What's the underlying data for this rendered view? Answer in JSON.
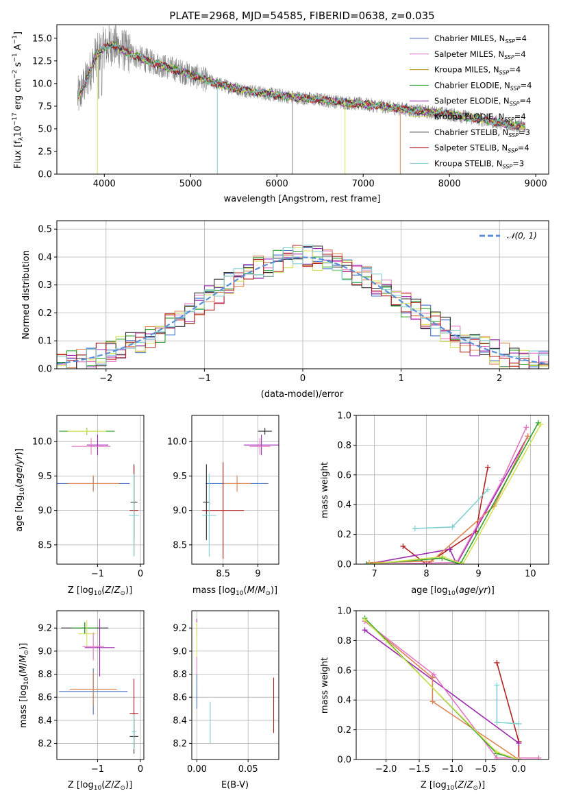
{
  "chart_data": [
    {
      "id": "spectrum",
      "type": "line",
      "title": "PLATE=2968, MJD=54585, FIBERID=0638, z=0.035",
      "xlabel": "wavelength [Angstrom, rest frame]",
      "ylabel_tex": "Flux [f_λ 10^{-17} erg cm^{-2} s^{-1} A^{-1}]",
      "xlim": [
        3450,
        9150
      ],
      "ylim": [
        0,
        16.5
      ],
      "xticks": [
        4000,
        5000,
        6000,
        7000,
        8000,
        9000
      ],
      "yticks": [
        0.0,
        2.5,
        5.0,
        7.5,
        10.0,
        12.5,
        15.0
      ],
      "grid": false,
      "legend_placement": "top-right",
      "data_color": "#808080",
      "data_anchor_x": [
        3700,
        3800,
        3900,
        4000,
        4100,
        4300,
        4500,
        4800,
        5000,
        5300,
        5600,
        6000,
        6400,
        6800,
        7200,
        7600,
        8000,
        8400,
        8800
      ],
      "data_anchor_y": [
        8.5,
        10.5,
        13.0,
        14.0,
        14.3,
        13.3,
        12.5,
        11.6,
        11.0,
        10.0,
        9.3,
        8.7,
        8.3,
        7.9,
        7.5,
        7.0,
        6.6,
        6.0,
        5.3
      ],
      "series": [
        {
          "name": "Chabrier MILES, N_SSP=4",
          "label_main": "Chabrier MILES, N",
          "label_sub": "SSP",
          "label_end": "=4",
          "color": "#4472c4"
        },
        {
          "name": "Salpeter MILES, N_SSP=4",
          "label_main": "Salpeter MILES, N",
          "label_sub": "SSP",
          "label_end": "=4",
          "color": "#e377c2"
        },
        {
          "name": "Kroupa MILES, N_SSP=4",
          "label_main": "Kroupa MILES, N",
          "label_sub": "SSP",
          "label_end": "=4",
          "color": "#b8860b"
        },
        {
          "name": "Chabrier ELODIE, N_SSP=4",
          "label_main": "Chabrier ELODIE, N",
          "label_sub": "SSP",
          "label_end": "=4",
          "color": "#2ca02c"
        },
        {
          "name": "Salpeter ELODIE, N_SSP=4",
          "label_main": "Salpeter ELODIE, N",
          "label_sub": "SSP",
          "label_end": "=4",
          "color": "#9c27b0"
        },
        {
          "name": "Kroupa ELODIE, N_SSP=4",
          "label_main": "Kroupa ELODIE, N",
          "label_sub": "SSP",
          "label_end": "=4",
          "color": "#d4e157"
        },
        {
          "name": "Chabrier STELIB, N_SSP=3",
          "label_main": "Chabrier STELIB, N",
          "label_sub": "SSP",
          "label_end": "=3",
          "color": "#333333"
        },
        {
          "name": "Salpeter STELIB, N_SSP=4",
          "label_main": "Salpeter STELIB, N",
          "label_sub": "SSP",
          "label_end": "=4",
          "color": "#b22222"
        },
        {
          "name": "Kroupa STELIB, N_SSP=3",
          "label_main": "Kroupa STELIB, N",
          "label_sub": "SSP",
          "label_end": "=3",
          "color": "#80d0d0"
        }
      ]
    },
    {
      "id": "residuals",
      "type": "line",
      "xlabel": "(data-model)/error",
      "ylabel": "Normed distribution",
      "xlim": [
        -2.5,
        2.5
      ],
      "ylim": [
        0,
        0.53
      ],
      "xticks": [
        -2,
        -1,
        0,
        1,
        2
      ],
      "xtick_labels": [
        "−2",
        "−1",
        "0",
        "1",
        "2"
      ],
      "yticks": [
        0.0,
        0.1,
        0.2,
        0.3,
        0.4,
        0.5
      ],
      "grid": true,
      "legend_placement": "top-right",
      "legend_label": "𝒩(0, 1)",
      "gauss_color": "#5b8fd9",
      "hist_bin_width": 0.1,
      "hist_colors": [
        "#4472c4",
        "#e377c2",
        "#dd8452",
        "#2ca02c",
        "#9c27b0",
        "#d4e157",
        "#333333",
        "#b22222",
        "#80d0d0"
      ]
    },
    {
      "id": "age-vs-Z",
      "type": "scatter",
      "xlabel_tex": "Z [log10(Z/Z☉)]",
      "ylabel_tex": "age [log10(age/yr)]",
      "xlim": [
        -1.95,
        0.08
      ],
      "ylim": [
        8.22,
        10.38
      ],
      "xticks": [
        -1,
        0
      ],
      "xtick_labels": [
        "−1",
        "0"
      ],
      "yticks": [
        8.5,
        9.0,
        9.5,
        10.0
      ],
      "grid": true,
      "points": [
        {
          "x": -1.25,
          "xerr": 0.65,
          "y": 10.15,
          "yerr": 0.05,
          "color": "#2ca02c"
        },
        {
          "x": -1.25,
          "xerr": 0.45,
          "y": 10.15,
          "yerr": 0.04,
          "color": "#d4e157"
        },
        {
          "x": -1.0,
          "xerr": 0.25,
          "y": 9.95,
          "yerr": 0.15,
          "color": "#9c27b0"
        },
        {
          "x": -1.15,
          "xerr": 0.45,
          "y": 9.93,
          "yerr": 0.12,
          "color": "#e377c2"
        },
        {
          "x": -1.1,
          "xerr": 0.85,
          "y": 9.39,
          "yerr": 0.1,
          "color": "#4472c4"
        },
        {
          "x": -1.1,
          "xerr": 0.6,
          "y": 9.39,
          "yerr": 0.12,
          "color": "#dd8452"
        },
        {
          "x": -0.15,
          "xerr": 0.08,
          "y": 9.12,
          "yerr": 0.55,
          "color": "#333333"
        },
        {
          "x": -0.15,
          "xerr": 0.1,
          "y": 9.0,
          "yerr": 0.65,
          "color": "#b22222"
        },
        {
          "x": -0.15,
          "xerr": 0.12,
          "y": 8.93,
          "yerr": 0.6,
          "color": "#80d0d0"
        }
      ]
    },
    {
      "id": "age-vs-mass",
      "type": "scatter",
      "xlabel_tex": "mass [log10(M/M☉)]",
      "xlim": [
        8.05,
        9.3
      ],
      "ylim": [
        8.22,
        10.38
      ],
      "xticks": [
        8.5,
        9.0
      ],
      "yticks": [
        8.5,
        9.0,
        9.5,
        10.0
      ],
      "grid": true,
      "points": [
        {
          "x": 9.1,
          "xerr": 0.1,
          "y": 10.15,
          "yerr": 0.05,
          "color": "#333333"
        },
        {
          "x": 9.05,
          "xerr": 0.25,
          "y": 9.95,
          "yerr": 0.15,
          "color": "#9c27b0"
        },
        {
          "x": 9.03,
          "xerr": 0.15,
          "y": 9.93,
          "yerr": 0.12,
          "color": "#e377c2"
        },
        {
          "x": 8.7,
          "xerr": 0.45,
          "y": 9.39,
          "yerr": 0.1,
          "color": "#4472c4"
        },
        {
          "x": 8.7,
          "xerr": 0.2,
          "y": 9.39,
          "yerr": 0.12,
          "color": "#dd8452"
        },
        {
          "x": 8.5,
          "xerr": 0.3,
          "y": 9.0,
          "yerr": 0.7,
          "color": "#b22222"
        },
        {
          "x": 8.26,
          "xerr": 0.05,
          "y": 9.12,
          "yerr": 0.55,
          "color": "#333333"
        },
        {
          "x": 8.3,
          "xerr": 0.1,
          "y": 8.93,
          "yerr": 0.6,
          "color": "#80d0d0"
        }
      ]
    },
    {
      "id": "weight-vs-age",
      "type": "line",
      "xlabel_tex": "age [log10(age/yr)]",
      "ylabel": "mass weight",
      "xlim": [
        6.65,
        10.35
      ],
      "ylim": [
        0,
        1
      ],
      "xticks": [
        7,
        8,
        9,
        10
      ],
      "yticks": [
        0.0,
        0.2,
        0.4,
        0.6,
        0.8,
        1.0
      ],
      "grid": true,
      "series": [
        {
          "color": "#b22222",
          "x": [
            7.55,
            8.0,
            8.95,
            9.18
          ],
          "y": [
            0.12,
            0.0,
            0.22,
            0.65
          ]
        },
        {
          "color": "#80d0d0",
          "x": [
            7.78,
            8.5,
            9.18
          ],
          "y": [
            0.24,
            0.25,
            0.5
          ]
        },
        {
          "color": "#9c27b0",
          "x": [
            6.85,
            8.45,
            8.58,
            9.95
          ],
          "y": [
            0.0,
            0.1,
            0.0,
            0.86
          ]
        },
        {
          "color": "#dd8452",
          "x": [
            6.9,
            8.1,
            9.3,
            9.95
          ],
          "y": [
            0.01,
            0.02,
            0.39,
            0.86
          ]
        },
        {
          "color": "#e377c2",
          "x": [
            6.85,
            8.58,
            9.45,
            9.92
          ],
          "y": [
            0.0,
            0.01,
            0.56,
            0.92
          ]
        },
        {
          "color": "#2ca02c",
          "x": [
            6.85,
            8.3,
            8.65,
            10.15
          ],
          "y": [
            0.0,
            0.04,
            0.0,
            0.95
          ]
        },
        {
          "color": "#d4e157",
          "x": [
            6.9,
            8.32,
            8.7,
            10.2
          ],
          "y": [
            0.0,
            0.05,
            0.0,
            0.94
          ]
        }
      ]
    },
    {
      "id": "mass-vs-Z",
      "type": "scatter",
      "xlabel_tex": "Z [log10(Z/Z☉)]",
      "ylabel_tex": "mass [log10(M/M☉)]",
      "xlim": [
        -1.95,
        0.08
      ],
      "ylim": [
        8.06,
        9.35
      ],
      "xticks": [
        -1,
        0
      ],
      "xtick_labels": [
        "−1",
        "0"
      ],
      "yticks": [
        8.2,
        8.4,
        8.6,
        8.8,
        9.0,
        9.2
      ],
      "grid": true,
      "points": [
        {
          "x": -1.3,
          "xerr": 0.55,
          "y": 9.2,
          "yerr": 0.05,
          "color": "#333333"
        },
        {
          "x": -1.3,
          "xerr": 0.3,
          "y": 9.2,
          "yerr": 0.05,
          "color": "#2ca02c"
        },
        {
          "x": -1.25,
          "xerr": 0.2,
          "y": 9.15,
          "yerr": 0.12,
          "color": "#d4e157"
        },
        {
          "x": -0.95,
          "xerr": 0.35,
          "y": 9.03,
          "yerr": 0.25,
          "color": "#9c27b0"
        },
        {
          "x": -1.1,
          "xerr": 0.25,
          "y": 9.04,
          "yerr": 0.12,
          "color": "#e377c2"
        },
        {
          "x": -1.1,
          "xerr": 0.8,
          "y": 8.65,
          "yerr": 0.2,
          "color": "#4472c4"
        },
        {
          "x": -1.1,
          "xerr": 0.55,
          "y": 8.67,
          "yerr": 0.15,
          "color": "#dd8452"
        },
        {
          "x": -0.15,
          "xerr": 0.1,
          "y": 8.46,
          "yerr": 0.3,
          "color": "#b22222"
        },
        {
          "x": -0.15,
          "xerr": 0.1,
          "y": 8.26,
          "yerr": 0.15,
          "color": "#333333"
        },
        {
          "x": -0.15,
          "xerr": 0.05,
          "y": 8.3,
          "yerr": 0.15,
          "color": "#80d0d0"
        }
      ]
    },
    {
      "id": "mass-vs-ebv",
      "type": "scatter",
      "xlabel": "E(B-V)",
      "xlim": [
        -0.005,
        0.08
      ],
      "ylim": [
        8.06,
        9.35
      ],
      "xticks": [
        0.0,
        0.05
      ],
      "xtick_labels": [
        "0.00",
        "0.05"
      ],
      "yticks": [
        8.2,
        8.4,
        8.6,
        8.8,
        9.0,
        9.2
      ],
      "grid": true,
      "points": [
        {
          "x": 0.0,
          "y": 9.2,
          "yerr": 0.08,
          "color": "#9c27b0"
        },
        {
          "x": 0.0,
          "y": 9.05,
          "yerr": 0.2,
          "color": "#d4e157"
        },
        {
          "x": 0.0,
          "y": 8.85,
          "yerr": 0.1,
          "color": "#e377c2"
        },
        {
          "x": 0.0,
          "y": 8.6,
          "yerr": 0.1,
          "color": "#dd8452"
        },
        {
          "x": 0.0,
          "y": 8.65,
          "yerr": 0.15,
          "color": "#4472c4"
        },
        {
          "x": 0.013,
          "y": 8.38,
          "yerr": 0.18,
          "color": "#80d0d0"
        },
        {
          "x": 0.075,
          "y": 8.53,
          "yerr": 0.24,
          "color": "#b22222"
        }
      ]
    },
    {
      "id": "weight-vs-Z",
      "type": "line",
      "xlabel_tex": "Z [log10(Z/Z☉)]",
      "ylabel": "mass weight",
      "xlim": [
        -2.45,
        0.45
      ],
      "ylim": [
        0,
        1
      ],
      "xticks": [
        -2.0,
        -1.5,
        -1.0,
        -0.5,
        0.0
      ],
      "xtick_labels": [
        "−2.0",
        "−1.5",
        "−1.0",
        "−0.5",
        "0.0"
      ],
      "yticks": [
        0.0,
        0.2,
        0.4,
        0.6,
        0.8,
        1.0
      ],
      "grid": true,
      "series": [
        {
          "color": "#b22222",
          "x": [
            -0.33,
            0.0,
            0.0
          ],
          "y": [
            0.65,
            0.12,
            0.0
          ]
        },
        {
          "color": "#80d0d0",
          "x": [
            -0.33,
            -0.33,
            0.0
          ],
          "y": [
            0.5,
            0.25,
            0.24
          ]
        },
        {
          "color": "#9c27b0",
          "x": [
            -2.32,
            0.0
          ],
          "y": [
            0.87,
            0.11
          ]
        },
        {
          "color": "#dd8452",
          "x": [
            -2.32,
            -1.3,
            -1.3,
            0.0
          ],
          "y": [
            0.93,
            0.55,
            0.39,
            0.0
          ]
        },
        {
          "color": "#e377c2",
          "x": [
            -2.32,
            -1.28,
            -0.33,
            0.3
          ],
          "y": [
            0.93,
            0.57,
            0.01,
            0.01
          ]
        },
        {
          "color": "#2ca02c",
          "x": [
            -2.32,
            -0.33,
            0.0
          ],
          "y": [
            0.95,
            0.04,
            0.0
          ]
        },
        {
          "color": "#d4e157",
          "x": [
            -2.32,
            -0.33,
            0.0
          ],
          "y": [
            0.94,
            0.05,
            0.0
          ]
        }
      ]
    }
  ]
}
